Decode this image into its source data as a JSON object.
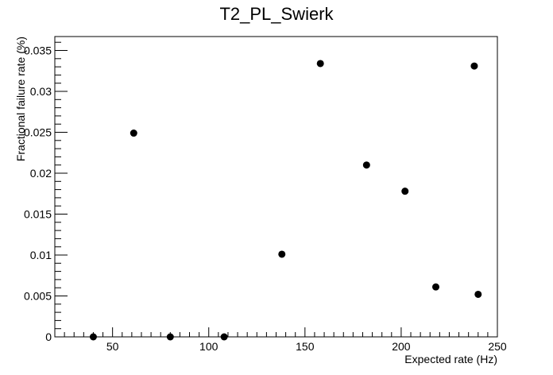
{
  "chart_data": {
    "type": "scatter",
    "title": "T2_PL_Swierk",
    "xlabel": "Expected rate (Hz)",
    "ylabel": "Fractional failure rate (%)",
    "xlim": [
      20,
      250
    ],
    "ylim": [
      0,
      0.0367
    ],
    "x_ticks": [
      50,
      100,
      150,
      200,
      250
    ],
    "x_tick_labels": [
      "50",
      "100",
      "150",
      "200",
      "250"
    ],
    "y_ticks": [
      0,
      0.005,
      0.01,
      0.015,
      0.02,
      0.025,
      0.03,
      0.035
    ],
    "y_tick_labels": [
      "0",
      "0.005",
      "0.01",
      "0.015",
      "0.02",
      "0.025",
      "0.03",
      "0.035"
    ],
    "grid": false,
    "legend": "none",
    "marker_color": "#000000",
    "points": [
      {
        "x": 40,
        "y": 0
      },
      {
        "x": 61,
        "y": 0.0249
      },
      {
        "x": 80,
        "y": 0
      },
      {
        "x": 108,
        "y": 0
      },
      {
        "x": 138,
        "y": 0.0101
      },
      {
        "x": 158,
        "y": 0.0334
      },
      {
        "x": 182,
        "y": 0.021
      },
      {
        "x": 202,
        "y": 0.0178
      },
      {
        "x": 218,
        "y": 0.0061
      },
      {
        "x": 238,
        "y": 0.0331
      },
      {
        "x": 240,
        "y": 0.0052
      }
    ]
  }
}
